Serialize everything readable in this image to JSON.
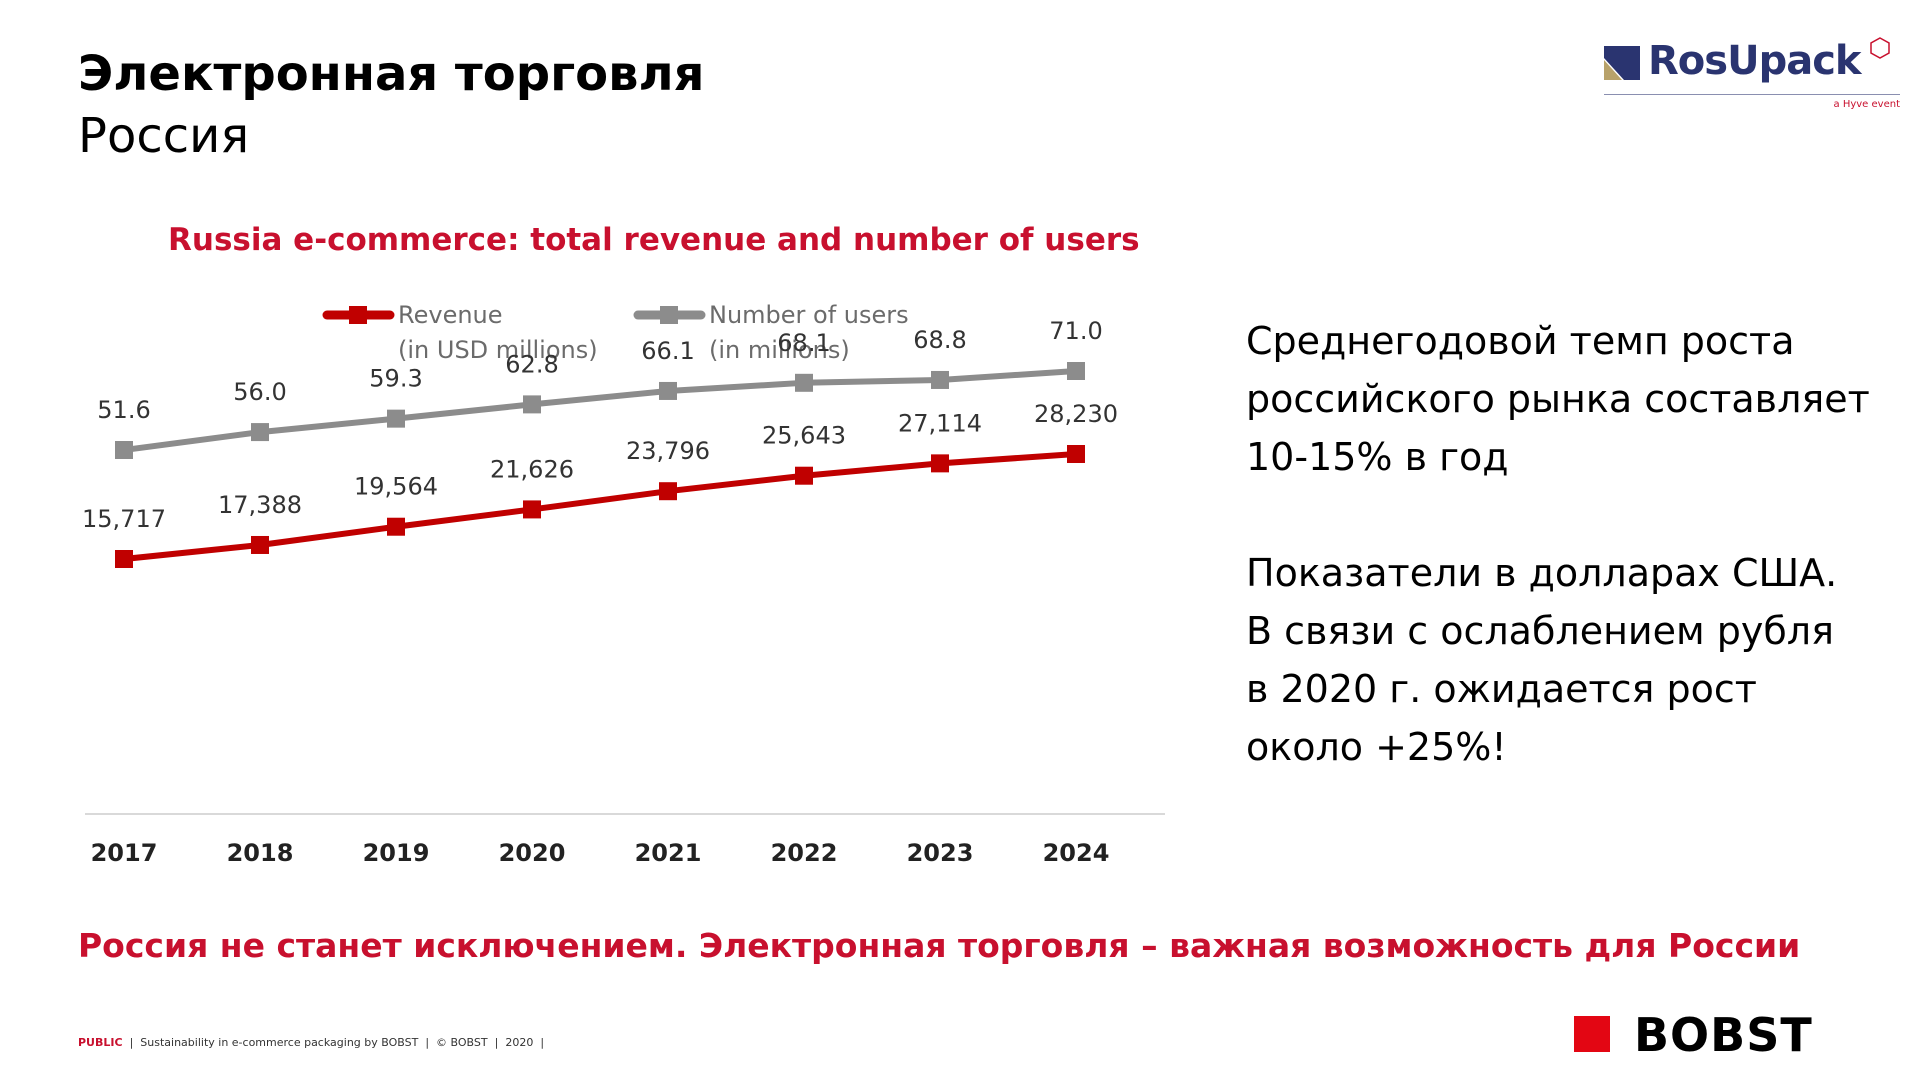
{
  "slide": {
    "title": "Электронная торговля",
    "subtitle": "Россия",
    "text_block_1": [
      "Среднегодовой темп роста",
      "российского рынка составляет",
      "10-15% в год"
    ],
    "text_block_2": [
      "Показатели в долларах США.",
      "В связи с ослаблением рубля",
      "в 2020 г. ожидается рост",
      "около +25%!"
    ],
    "callout": "Россия не станет исключением. Электронная торговля – важная возможность для России",
    "footer": {
      "classification": "PUBLIC",
      "items": [
        "Sustainability in e-commerce packaging by BOBST",
        "© BOBST",
        "2020"
      ]
    },
    "logos": {
      "rosupack": {
        "name": "RosUpack",
        "tagline": "a Hyve event"
      },
      "bobst": {
        "name": "BOBST"
      }
    }
  },
  "colors": {
    "accent_red": "#c8102e",
    "revenue_series": "#c00000",
    "users_series": "#8c8c8c",
    "bobst_red": "#e30613"
  },
  "chart_data": {
    "type": "line",
    "title": "Russia e-commerce: total revenue and number of users",
    "x": [
      "2017",
      "2018",
      "2019",
      "2020",
      "2021",
      "2022",
      "2023",
      "2024"
    ],
    "series": [
      {
        "name": "Revenue",
        "name_line2": "(in USD millions)",
        "values": [
          15717,
          17388,
          19564,
          21626,
          23796,
          25643,
          27114,
          28230
        ],
        "labels": [
          "15,717",
          "17,388",
          "19,564",
          "21,626",
          "23,796",
          "25,643",
          "27,114",
          "28,230"
        ],
        "color": "#c00000",
        "marker": "square"
      },
      {
        "name": "Number of users",
        "name_line2": "(in millions)",
        "values": [
          51.6,
          56.0,
          59.3,
          62.8,
          66.1,
          68.1,
          68.8,
          71.0
        ],
        "labels": [
          "51.6",
          "56.0",
          "59.3",
          "62.8",
          "66.1",
          "68.1",
          "68.8",
          "71.0"
        ],
        "color": "#8c8c8c",
        "marker": "square"
      }
    ],
    "revenue_range": [
      0,
      40000
    ],
    "users_range": [
      0,
      100
    ],
    "grid": false,
    "legend_position": "top"
  }
}
